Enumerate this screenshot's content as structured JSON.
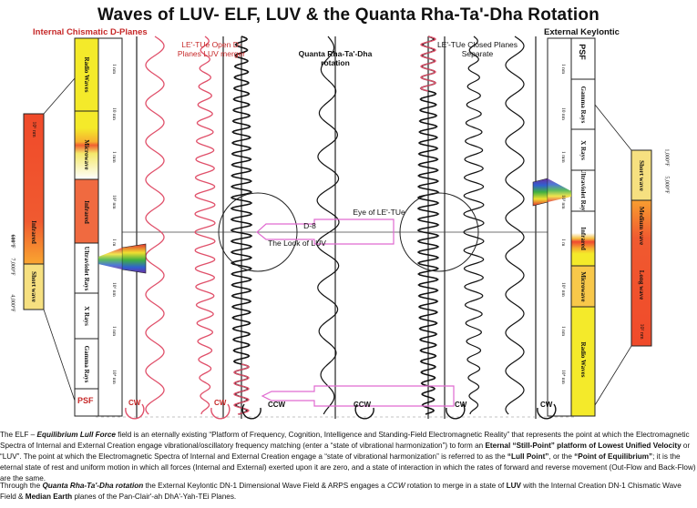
{
  "title": "Waves of LUV- ELF, LUV & the Quanta Rha-Ta'-Dha Rotation",
  "header_left": "Internal Chismatic D-Planes",
  "header_right": "External Keylontic",
  "label_open": "LE'-TUe Open D-Planes LUV merger",
  "label_quanta": "Quanta Rha-Ta'-Dha rotation",
  "label_closed": "LE'-TUe Closed Planes Separate",
  "label_eye": "Eye of LE'-TUe",
  "label_d8": "D-8",
  "label_look": "The Look of LUV",
  "psf_left": "PSF",
  "psf_right": "PSF",
  "left_spectrum": [
    "Radio Waves",
    "Microwave",
    "Infrared",
    "Ultraviolet Rays",
    "X Rays",
    "Gamma Rays"
  ],
  "right_spectrum": [
    "Gamma Rays",
    "X Rays",
    "Ultraviolet Rays",
    "Infrared",
    "Microwave",
    "Radio Waves"
  ],
  "left_small_bar": [
    "10⁶ nm",
    "Short wave",
    "4,000°F",
    "7,000°F",
    "Infrared",
    "600°F"
  ],
  "right_small_bar": [
    "1,000°F",
    "5,000°F",
    "Short wave",
    "Medium wave",
    "Long wave",
    "10² nm"
  ],
  "rotation_labels": [
    "CW",
    "CW",
    "CCW",
    "CCW",
    "CW",
    "CW"
  ],
  "colors": {
    "red": "#c62828",
    "wave_red": "#e0506a",
    "wave_black": "#111111",
    "yellow": "#f4ea2a",
    "pink_arrow": "#e06ad0"
  },
  "paragraphs": [
    {
      "parts": [
        {
          "t": "The ELF – ",
          "s": "n"
        },
        {
          "t": "Equilibrium Lull Force",
          "s": "bi"
        },
        {
          "t": " field is an eternally existing “Platform of Frequency, Cognition, Intelligence and Standing-Field Electromagnetic Reality” that represents the point at which the Electromagnetic Spectra of Internal and External Creation engage vibrational/oscillatory frequency matching (enter a “state of vibrational harmonization”) to form an ",
          "s": "n"
        },
        {
          "t": "Eternal “Still-Point” platform of Lowest Unified Velocity",
          "s": "b"
        },
        {
          "t": " or “LUV”. The point at which the Electromagnetic Spectra of Internal and External Creation engage a “state of vibrational harmonization” is referred to as the ",
          "s": "n"
        },
        {
          "t": "“Lull Point”",
          "s": "b"
        },
        {
          "t": ", or the ",
          "s": "n"
        },
        {
          "t": "“Point of Equilibrium”",
          "s": "b"
        },
        {
          "t": "; it is the eternal state of rest and uniform motion in which all forces (Internal and External) exerted upon it are zero, and a state of interaction in which the rates of forward and reverse movement (Out-Flow and Back-Flow) are the same.",
          "s": "n"
        }
      ]
    },
    {
      "parts": [
        {
          "t": "Through the ",
          "s": "n"
        },
        {
          "t": "Quanta Rha-Ta'-Dha rotation",
          "s": "bi"
        },
        {
          "t": " the External Keylontic DN-1 Dimensional Wave Field & ARPS engages a ",
          "s": "n"
        },
        {
          "t": "CCW",
          "s": "i"
        },
        {
          "t": " rotation to merge in a state of ",
          "s": "n"
        },
        {
          "t": "LUV",
          "s": "b"
        },
        {
          "t": " with the Internal Creation DN-1 Chismatic Wave Field & ",
          "s": "n"
        },
        {
          "t": "Median Earth",
          "s": "b"
        },
        {
          "t": " planes of the Pan-Clair'-ah DhA'-Yah-TEi Planes.",
          "s": "n"
        }
      ]
    }
  ]
}
